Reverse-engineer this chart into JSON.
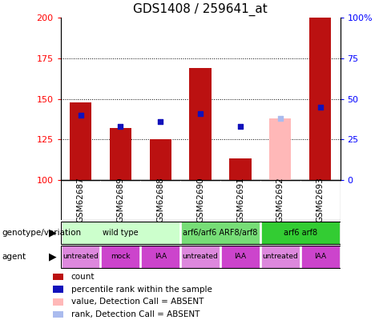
{
  "title": "GDS1408 / 259641_at",
  "samples": [
    "GSM62687",
    "GSM62689",
    "GSM62688",
    "GSM62690",
    "GSM62691",
    "GSM62692",
    "GSM62693"
  ],
  "count_values": [
    148,
    132,
    125,
    169,
    113,
    null,
    200
  ],
  "count_absent_values": [
    null,
    null,
    null,
    null,
    null,
    138,
    null
  ],
  "percentile_values": [
    140,
    133,
    136,
    141,
    133,
    null,
    145
  ],
  "percentile_absent_values": [
    null,
    null,
    null,
    null,
    null,
    138,
    null
  ],
  "ylim_left": [
    100,
    200
  ],
  "ylim_right": [
    0,
    100
  ],
  "yticks_left": [
    100,
    125,
    150,
    175,
    200
  ],
  "yticks_right": [
    0,
    25,
    50,
    75,
    100
  ],
  "ytick_labels_right": [
    "0",
    "25",
    "50",
    "75",
    "100%"
  ],
  "bar_color": "#bb1111",
  "bar_absent_color": "#ffb8b8",
  "dot_color": "#1111bb",
  "dot_absent_color": "#aabbee",
  "genotype_groups": [
    {
      "label": "wild type",
      "start": 0,
      "end": 3,
      "color": "#ccffcc"
    },
    {
      "label": "arf6/arf6 ARF8/arf8",
      "start": 3,
      "end": 5,
      "color": "#77dd77"
    },
    {
      "label": "arf6 arf8",
      "start": 5,
      "end": 7,
      "color": "#33cc33"
    }
  ],
  "agent_groups": [
    {
      "label": "untreated",
      "start": 0,
      "end": 1,
      "color": "#dd88dd"
    },
    {
      "label": "mock",
      "start": 1,
      "end": 2,
      "color": "#cc44cc"
    },
    {
      "label": "IAA",
      "start": 2,
      "end": 3,
      "color": "#cc44cc"
    },
    {
      "label": "untreated",
      "start": 3,
      "end": 4,
      "color": "#dd88dd"
    },
    {
      "label": "IAA",
      "start": 4,
      "end": 5,
      "color": "#cc44cc"
    },
    {
      "label": "untreated",
      "start": 5,
      "end": 6,
      "color": "#dd88dd"
    },
    {
      "label": "IAA",
      "start": 6,
      "end": 7,
      "color": "#cc44cc"
    }
  ],
  "sample_bg_color": "#cccccc",
  "legend_items": [
    {
      "label": "count",
      "color": "#bb1111"
    },
    {
      "label": "percentile rank within the sample",
      "color": "#1111bb"
    },
    {
      "label": "value, Detection Call = ABSENT",
      "color": "#ffb8b8"
    },
    {
      "label": "rank, Detection Call = ABSENT",
      "color": "#aabbee"
    }
  ],
  "grid_yticks": [
    125,
    150,
    175
  ]
}
